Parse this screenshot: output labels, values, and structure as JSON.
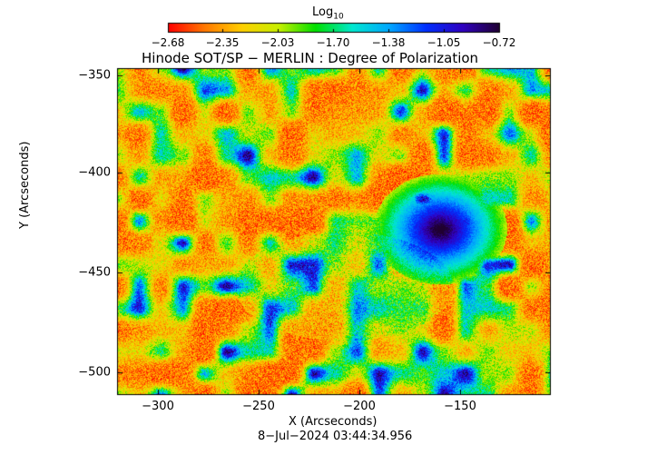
{
  "colorbar": {
    "label": "Log",
    "label_sub": "10",
    "ticks": [
      "−2.68",
      "−2.35",
      "−2.03",
      "−1.70",
      "−1.38",
      "−1.05",
      "−0.72"
    ],
    "colors": [
      "#ff0000",
      "#ff7a00",
      "#ffd000",
      "#c8f000",
      "#00e000",
      "#00e8d0",
      "#00a8ff",
      "#0030ff",
      "#3000c0",
      "#200030"
    ]
  },
  "title": "Hinode SOT/SP − MERLIN : Degree of Polarization",
  "x_axis": {
    "label": "X (Arcseconds)",
    "ticks": [
      "−300",
      "−250",
      "−200",
      "−150"
    ]
  },
  "y_axis": {
    "label": "Y (Arcseconds)",
    "ticks": [
      "−350",
      "−400",
      "−450",
      "−500"
    ]
  },
  "timestamp": "8−Jul−2024 03:44:34.956"
}
